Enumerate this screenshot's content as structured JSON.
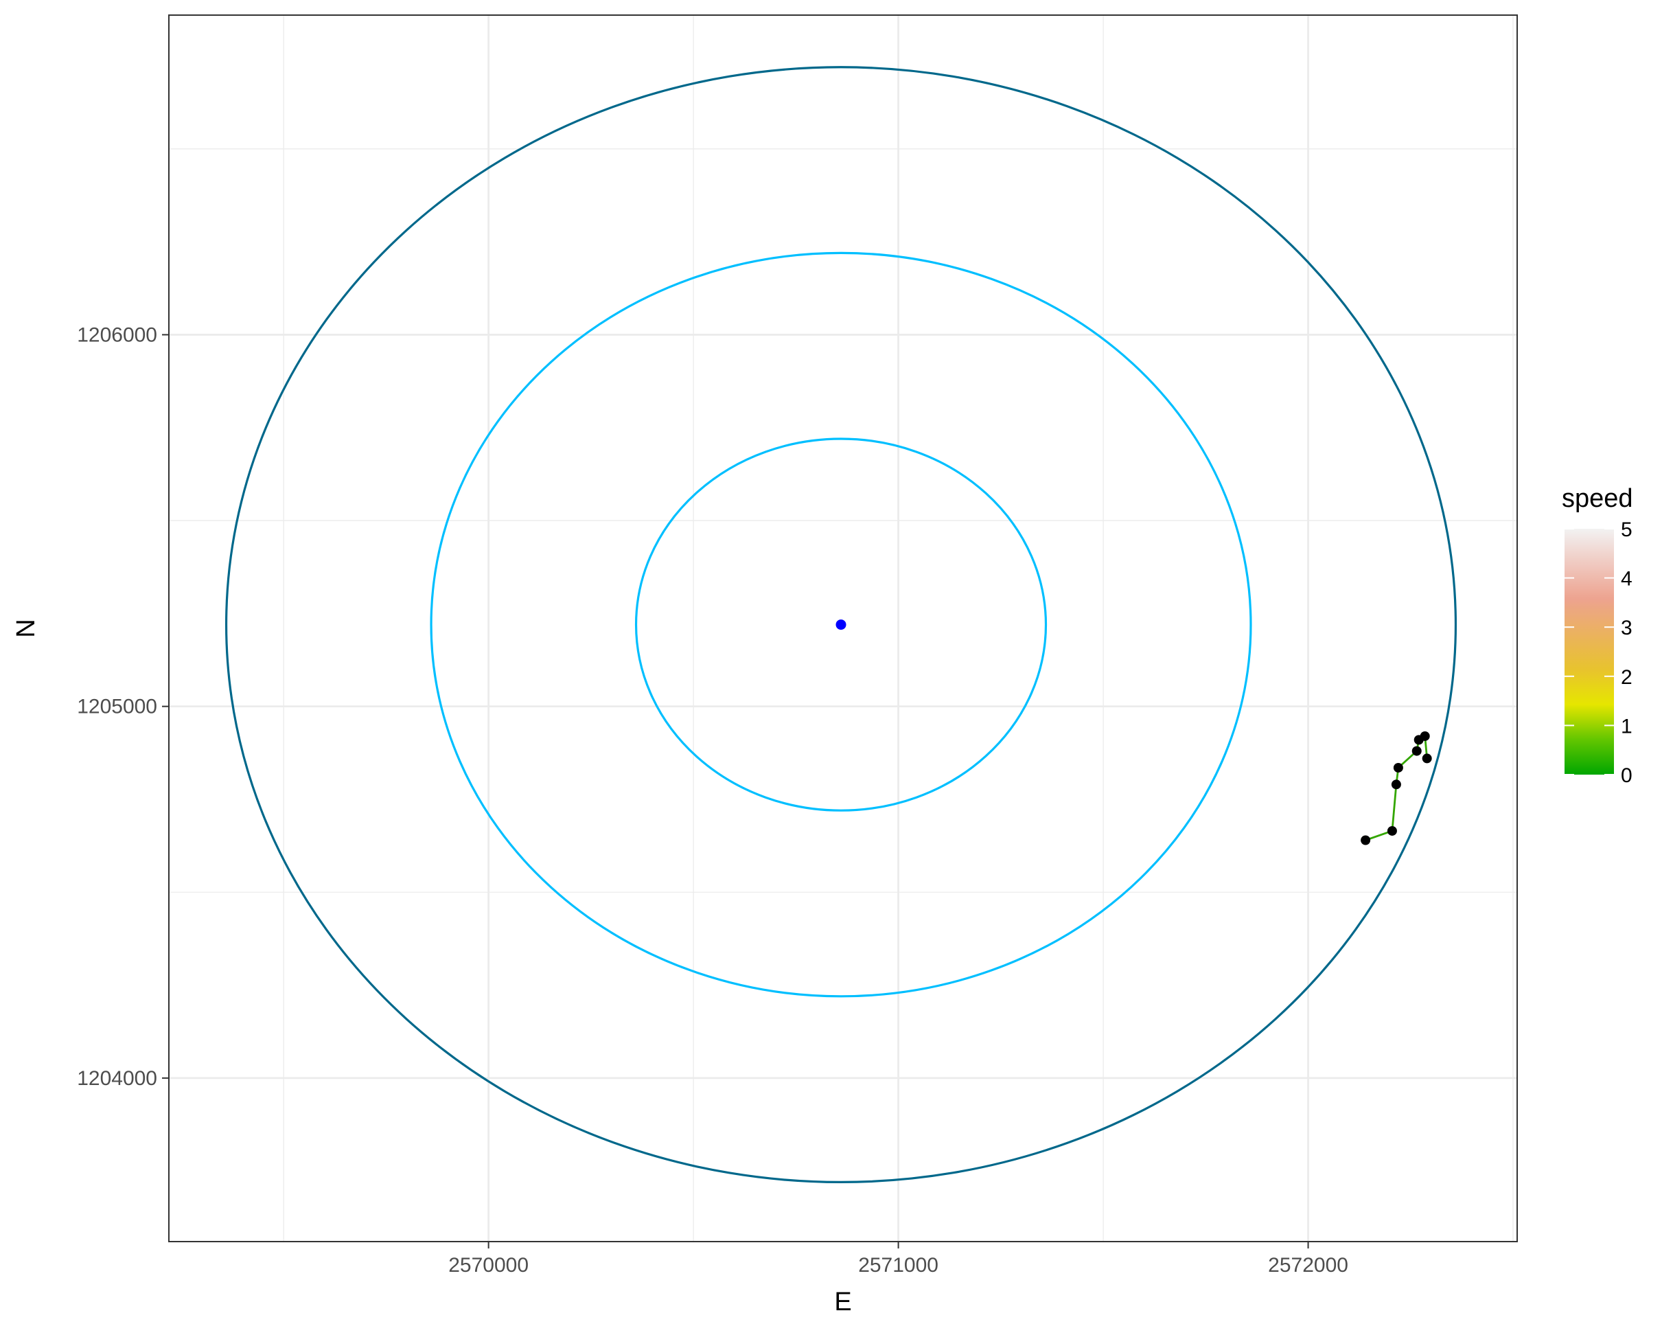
{
  "chart_data": {
    "type": "scatter",
    "title": "",
    "xlabel": "E",
    "ylabel": "N",
    "xlim": [
      2569220,
      2572510
    ],
    "ylim": [
      1203560,
      1206860
    ],
    "x_ticks": [
      2570000,
      2571000,
      2572000
    ],
    "y_ticks": [
      1204000,
      1205000,
      1206000
    ],
    "x_tick_labels": [
      "2570000",
      "2571000",
      "2572000"
    ],
    "y_tick_labels": [
      "1204000",
      "1205000",
      "1206000"
    ],
    "grid": true,
    "background": "#ffffff",
    "grid_color": "#ebebeb",
    "center": {
      "x": 2570860,
      "y": 1205220,
      "color": "#0000ff"
    },
    "circles": [
      {
        "radius": 500,
        "color": "#00bfff"
      },
      {
        "radius": 1000,
        "color": "#00bfff"
      },
      {
        "radius": 1500,
        "color": "#00688b"
      }
    ],
    "track": {
      "line_color": "#33a600",
      "point_color": "#000000",
      "points": [
        {
          "x": 2572140,
          "y": 1204640
        },
        {
          "x": 2572205,
          "y": 1204665
        },
        {
          "x": 2572215,
          "y": 1204790
        },
        {
          "x": 2572220,
          "y": 1204835
        },
        {
          "x": 2572265,
          "y": 1204880
        },
        {
          "x": 2572270,
          "y": 1204910
        },
        {
          "x": 2572285,
          "y": 1204920
        },
        {
          "x": 2572290,
          "y": 1204860
        }
      ]
    },
    "legend": {
      "title": "speed",
      "placement": "right",
      "min": 0,
      "max": 5,
      "labels": [
        "0",
        "1",
        "2",
        "3",
        "4",
        "5"
      ],
      "gradient_colors": [
        "#00a600",
        "#63c600",
        "#e6e600",
        "#e8c32e",
        "#ebb25e",
        "#eda38f",
        "#f0c9c0",
        "#f2f2f2"
      ]
    }
  }
}
